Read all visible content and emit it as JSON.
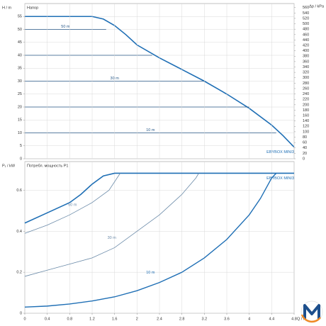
{
  "chart_data": [
    {
      "type": "line",
      "title": "Напор",
      "ylabel": "H / m",
      "y2label": "Δp / kPa",
      "xlim": [
        0,
        4.8
      ],
      "ylim": [
        0,
        60
      ],
      "yticks": [
        0,
        5,
        10,
        15,
        20,
        25,
        30,
        35,
        40,
        45,
        50,
        55
      ],
      "y2lim": [
        0,
        575
      ],
      "y2ticks": [
        0,
        20,
        40,
        60,
        80,
        100,
        120,
        140,
        160,
        180,
        200,
        220,
        240,
        260,
        280,
        300,
        320,
        340,
        360,
        380,
        400,
        420,
        440,
        460,
        480,
        500,
        520,
        540,
        560
      ],
      "grid": true,
      "series": [
        {
          "name": "EBYBOX MINI3",
          "color": "#1f6fb5",
          "line_width": 1.6,
          "x": [
            0,
            1.2,
            1.4,
            1.6,
            1.8,
            2.0,
            2.4,
            2.8,
            3.2,
            3.6,
            4.0,
            4.4,
            4.6,
            4.8
          ],
          "values": [
            55,
            55,
            54,
            51.5,
            48,
            44,
            39,
            34.5,
            30,
            25,
            19.5,
            13,
            9,
            4.5
          ]
        },
        {
          "name": "50 m",
          "color": "#2a5a8a",
          "line_width": 0.8,
          "x": [
            0,
            1.45
          ],
          "values": [
            50,
            50
          ]
        },
        {
          "color": "#2a5a8a",
          "line_width": 0.8,
          "x": [
            0,
            2.27
          ],
          "values": [
            40,
            40
          ]
        },
        {
          "name": "30 m",
          "color": "#2a5a8a",
          "line_width": 0.8,
          "x": [
            0,
            3.2
          ],
          "values": [
            30,
            30
          ]
        },
        {
          "color": "#2a5a8a",
          "line_width": 0.8,
          "x": [
            0,
            4.0
          ],
          "values": [
            20,
            20
          ]
        },
        {
          "name": "10 m",
          "color": "#2a5a8a",
          "line_width": 0.8,
          "x": [
            0,
            4.48
          ],
          "values": [
            10,
            10
          ]
        }
      ]
    },
    {
      "type": "line",
      "title": "Потребл. мощность P1",
      "ylabel": "P₁ / kW",
      "xlabel": "Q / m³/h",
      "xlim": [
        0,
        4.8
      ],
      "xticks": [
        0,
        0.4,
        0.8,
        1.2,
        1.6,
        2,
        2.4,
        2.8,
        3.2,
        3.6,
        4,
        4.4,
        4.8
      ],
      "ylim": [
        0,
        0.74
      ],
      "yticks": [
        0,
        0.2,
        0.4,
        0.6
      ],
      "grid": true,
      "series": [
        {
          "name": "EBYBOX MINI3",
          "color": "#1f6fb5",
          "line_width": 1.6,
          "x": [
            0,
            0.4,
            0.8,
            1.0,
            1.2,
            1.4,
            1.6,
            4.8
          ],
          "values": [
            0.44,
            0.49,
            0.54,
            0.58,
            0.63,
            0.67,
            0.683,
            0.683
          ]
        },
        {
          "name": "50 m",
          "color": "#6a8aa8",
          "line_width": 0.8,
          "x": [
            0,
            0.4,
            0.8,
            1.2,
            1.5,
            1.7
          ],
          "values": [
            0.39,
            0.43,
            0.48,
            0.54,
            0.6,
            0.683
          ]
        },
        {
          "name": "30 m",
          "color": "#6a8aa8",
          "line_width": 0.8,
          "x": [
            0,
            0.4,
            0.8,
            1.2,
            1.6,
            2.0,
            2.4,
            2.8,
            3.05,
            3.1
          ],
          "values": [
            0.18,
            0.21,
            0.24,
            0.27,
            0.32,
            0.4,
            0.48,
            0.58,
            0.66,
            0.683
          ]
        },
        {
          "name": "10 m",
          "color": "#1f6fb5",
          "line_width": 1.4,
          "x": [
            0,
            0.4,
            0.8,
            1.2,
            1.6,
            2.0,
            2.4,
            2.8,
            3.2,
            3.6,
            4.0,
            4.2,
            4.4,
            4.48
          ],
          "values": [
            0.03,
            0.035,
            0.045,
            0.06,
            0.08,
            0.11,
            0.15,
            0.2,
            0.27,
            0.36,
            0.48,
            0.56,
            0.66,
            0.683
          ]
        }
      ]
    }
  ]
}
